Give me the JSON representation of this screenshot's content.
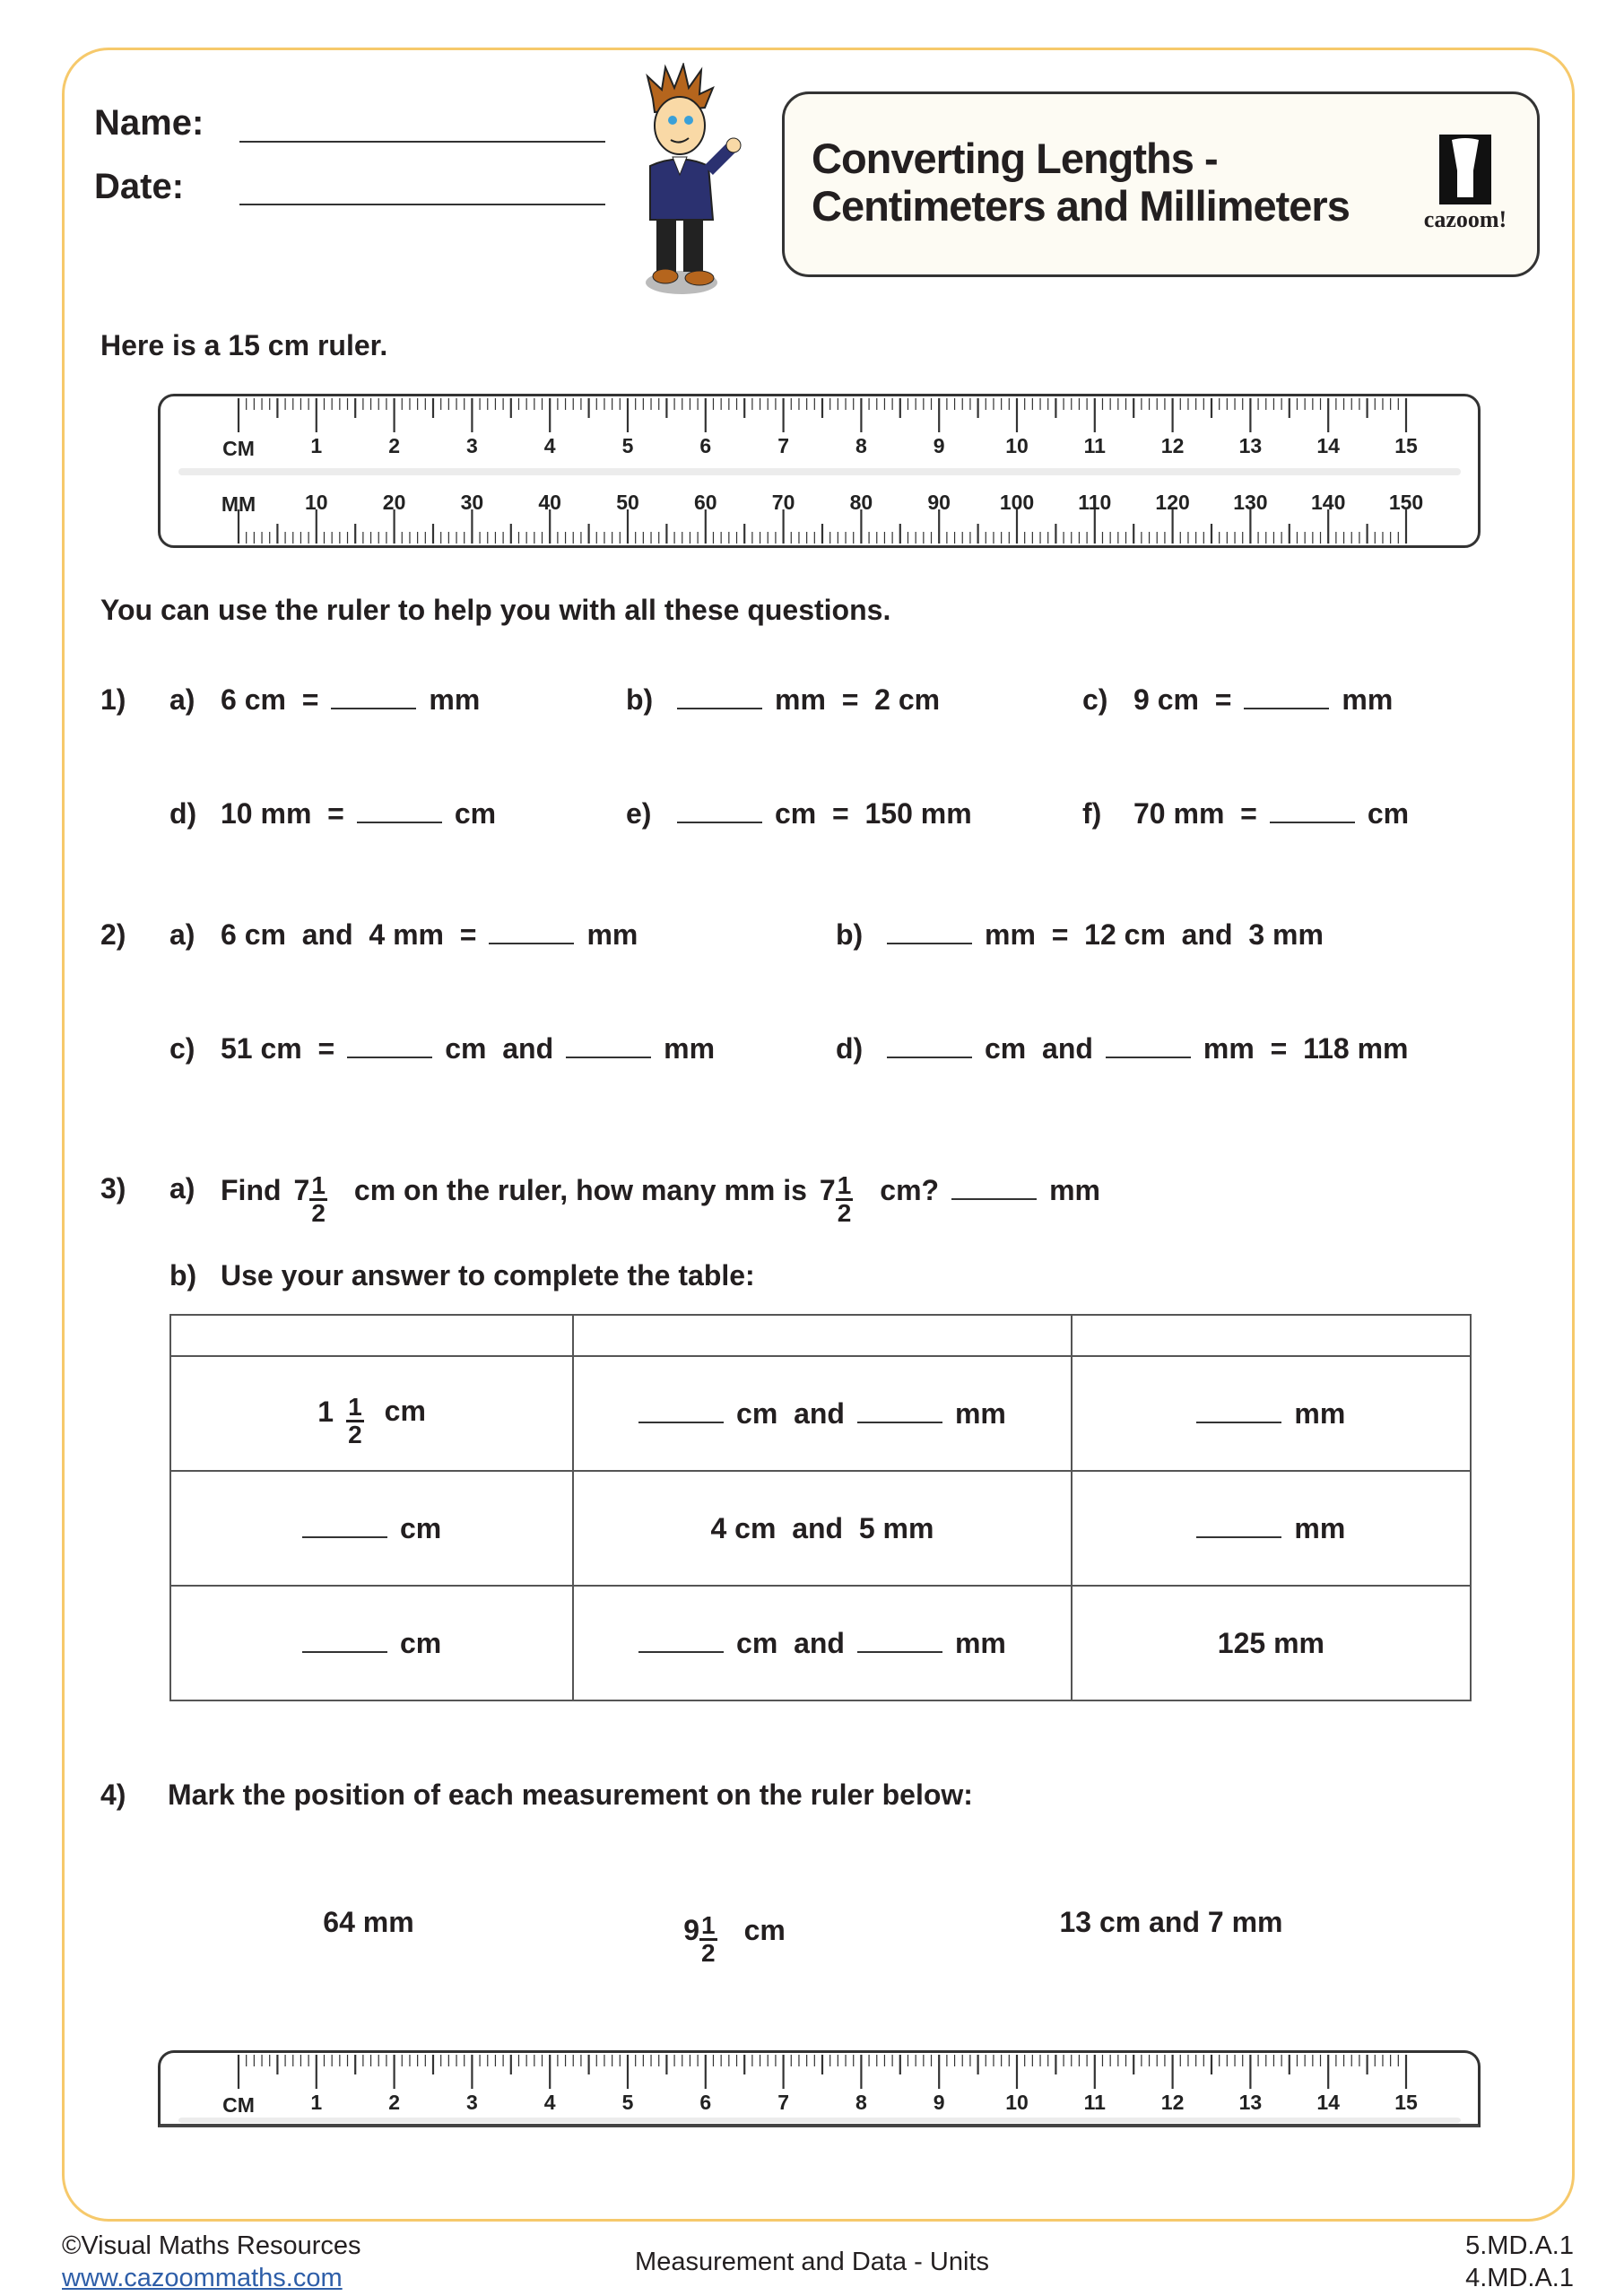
{
  "header": {
    "name_label": "Name:",
    "date_label": "Date:",
    "title_line1": "Converting Lengths -",
    "title_line2": "Centimeters and Millimeters",
    "logo_text": "cazoom!"
  },
  "intro": "Here is a 15 cm ruler.",
  "ruler": {
    "cm_label": "CM",
    "mm_label": "MM",
    "cm_numbers": [
      "1",
      "2",
      "3",
      "4",
      "5",
      "6",
      "7",
      "8",
      "9",
      "10",
      "11",
      "12",
      "13",
      "14",
      "15"
    ],
    "mm_numbers": [
      "10",
      "20",
      "30",
      "40",
      "50",
      "60",
      "70",
      "80",
      "90",
      "100",
      "110",
      "120",
      "130",
      "140",
      "150"
    ]
  },
  "instruction": "You can use the ruler to help you with all these questions.",
  "q1": {
    "num": "1)",
    "items": [
      {
        "label": "a)",
        "parts": [
          {
            "t": "6 cm  ="
          },
          {
            "blank": true
          },
          {
            "t": "mm"
          }
        ]
      },
      {
        "label": "b)",
        "parts": [
          {
            "blank": true
          },
          {
            "t": "mm  =  2 cm"
          }
        ]
      },
      {
        "label": "c)",
        "parts": [
          {
            "t": "9 cm  ="
          },
          {
            "blank": true
          },
          {
            "t": "mm"
          }
        ]
      },
      {
        "label": "d)",
        "parts": [
          {
            "t": "10 mm  ="
          },
          {
            "blank": true
          },
          {
            "t": "cm"
          }
        ]
      },
      {
        "label": "e)",
        "parts": [
          {
            "blank": true
          },
          {
            "t": "cm  =  150 mm"
          }
        ]
      },
      {
        "label": "f)",
        "parts": [
          {
            "t": "70 mm  ="
          },
          {
            "blank": true
          },
          {
            "t": "cm"
          }
        ]
      }
    ]
  },
  "q2": {
    "num": "2)",
    "items": [
      {
        "label": "a)",
        "parts": [
          {
            "t": "6 cm  and  4 mm  ="
          },
          {
            "blank": true
          },
          {
            "t": "mm"
          }
        ]
      },
      {
        "label": "b)",
        "parts": [
          {
            "blank": true
          },
          {
            "t": "mm  =  12 cm  and  3 mm"
          }
        ]
      },
      {
        "label": "c)",
        "parts": [
          {
            "t": "51 cm  ="
          },
          {
            "blank": true
          },
          {
            "t": "cm  and"
          },
          {
            "blank": true
          },
          {
            "t": "mm"
          }
        ]
      },
      {
        "label": "d)",
        "parts": [
          {
            "blank": true
          },
          {
            "t": "cm  and"
          },
          {
            "blank": true
          },
          {
            "t": "mm  =  118 mm"
          }
        ]
      }
    ]
  },
  "q3": {
    "num": "3)",
    "a_label": "a)",
    "a_parts": [
      {
        "t": "Find"
      },
      {
        "whole": "7",
        "num": "1",
        "den": "2"
      },
      {
        "t": "cm on the ruler, how many mm is"
      },
      {
        "whole": "7",
        "num": "1",
        "den": "2"
      },
      {
        "t": "cm?"
      },
      {
        "blank": true
      },
      {
        "t": "mm"
      }
    ],
    "b_label": "b)",
    "b_text": "Use your answer to complete the table:",
    "table": {
      "header": [
        "",
        "",
        ""
      ],
      "rows": [
        [
          [
            {
              "whole": "1",
              "num": "1",
              "den": "2"
            },
            {
              "t": "cm"
            }
          ],
          [
            {
              "blank": true
            },
            {
              "t": "cm  and"
            },
            {
              "blank": true
            },
            {
              "t": "mm"
            }
          ],
          [
            {
              "blank": true
            },
            {
              "t": "mm"
            }
          ]
        ],
        [
          [
            {
              "blank": true
            },
            {
              "t": "cm"
            }
          ],
          [
            {
              "t": "4 cm  and  5 mm"
            }
          ],
          [
            {
              "blank": true
            },
            {
              "t": "mm"
            }
          ]
        ],
        [
          [
            {
              "blank": true
            },
            {
              "t": "cm"
            }
          ],
          [
            {
              "blank": true
            },
            {
              "t": "cm  and"
            },
            {
              "blank": true
            },
            {
              "t": "mm"
            }
          ],
          [
            {
              "t": "125 mm"
            }
          ]
        ]
      ]
    }
  },
  "q4": {
    "num": "4)",
    "text": "Mark the position of each measurement on the ruler below:",
    "measurements": [
      [
        {
          "t": "64 mm"
        }
      ],
      [
        {
          "whole": "9",
          "num": "1",
          "den": "2"
        },
        {
          "t": "cm"
        }
      ],
      [
        {
          "t": "13 cm and 7 mm"
        }
      ]
    ]
  },
  "footer": {
    "copyright": "©Visual Maths Resources",
    "website": "www.cazoommaths.com",
    "topic": "Measurement and Data - Units",
    "standard1": "5.MD.A.1",
    "standard2": "4.MD.A.1"
  },
  "colors": {
    "border": "#f6c96b",
    "title_bg": "#fdfbf3",
    "link": "#2e5ea8"
  }
}
